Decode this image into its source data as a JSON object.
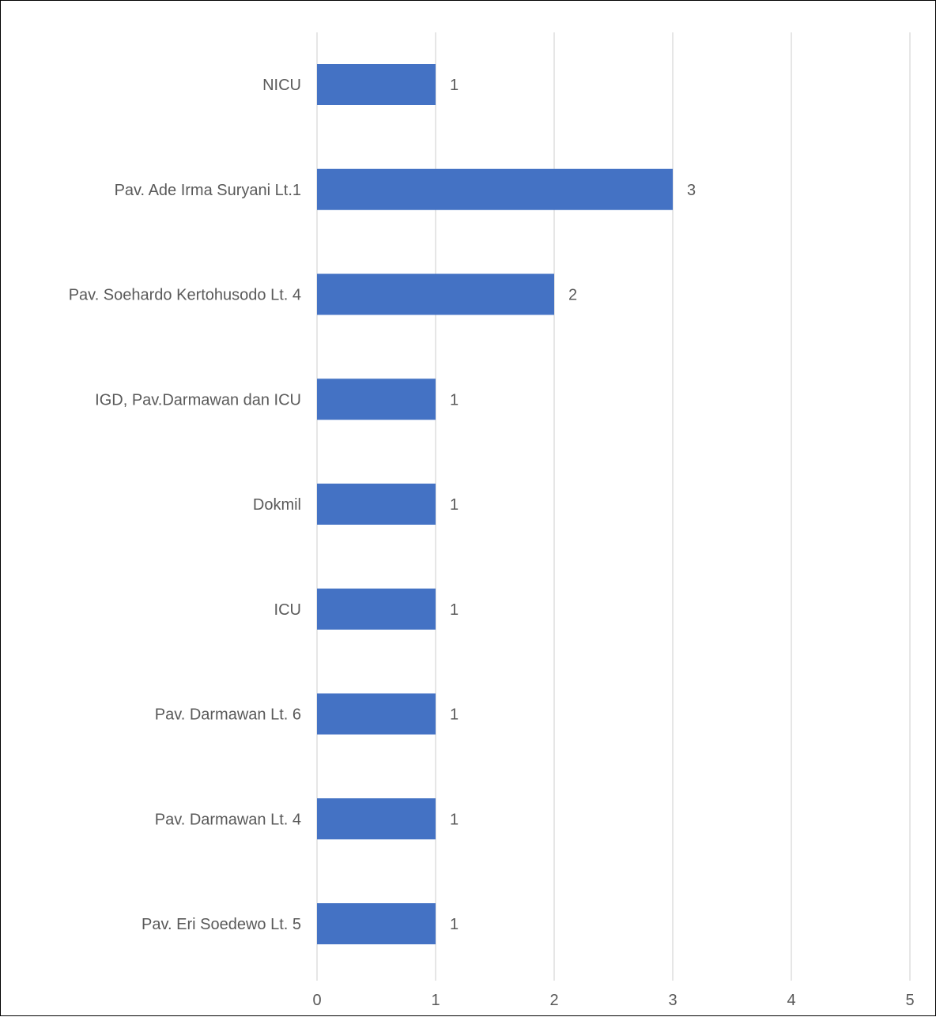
{
  "chart_data": {
    "type": "bar",
    "orientation": "horizontal",
    "categories": [
      "NICU",
      "Pav. Ade Irma Suryani Lt.1",
      "Pav. Soehardo Kertohusodo Lt. 4",
      "IGD, Pav.Darmawan dan ICU",
      "Dokmil",
      "ICU",
      "Pav. Darmawan Lt. 6",
      "Pav. Darmawan Lt. 4",
      "Pav. Eri Soedewo Lt. 5"
    ],
    "values": [
      1,
      3,
      2,
      1,
      1,
      1,
      1,
      1,
      1
    ],
    "xlim": [
      0,
      5
    ],
    "xticks": [
      0,
      1,
      2,
      3,
      4,
      5
    ],
    "grid": "vertical",
    "data_labels": true,
    "legend": "none",
    "bar_color": "#4472c4",
    "grid_color": "#d9d9d9",
    "text_color": "#595959"
  }
}
